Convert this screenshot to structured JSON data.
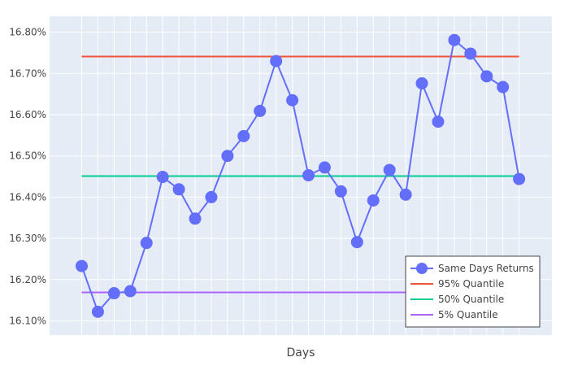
{
  "chart_data": {
    "type": "line",
    "xlabel": "Days",
    "ylabel": "",
    "ylim": [
      0.16065,
      0.16835
    ],
    "yticks": [
      "16.10%",
      "16.20%",
      "16.30%",
      "16.40%",
      "16.50%",
      "16.60%",
      "16.70%",
      "16.80%"
    ],
    "x": [
      1,
      2,
      3,
      4,
      5,
      6,
      7,
      8,
      9,
      10,
      11,
      12,
      13,
      14,
      15,
      16,
      17,
      18,
      19,
      20,
      21,
      22,
      23,
      24,
      25,
      26,
      27,
      28
    ],
    "series": [
      {
        "name": "Same Days Returns",
        "type": "line+markers",
        "color": "#636efa",
        "values": [
          0.16233,
          0.16122,
          0.16167,
          0.16172,
          0.16289,
          0.16449,
          0.16419,
          0.16348,
          0.164,
          0.165,
          0.16548,
          0.16609,
          0.1673,
          0.16635,
          0.16453,
          0.16472,
          0.16414,
          0.16291,
          0.16392,
          0.16466,
          0.16406,
          0.16676,
          0.16583,
          0.16781,
          0.16748,
          0.16693,
          0.16667,
          0.16444
        ]
      },
      {
        "name": "95% Quantile",
        "type": "line",
        "color": "#ef553b",
        "value": 0.16741
      },
      {
        "name": "50% Quantile",
        "type": "line",
        "color": "#00cc96",
        "value": 0.16451
      },
      {
        "name": "5% Quantile",
        "type": "line",
        "color": "#ab63fa",
        "value": 0.16169
      }
    ],
    "grid": true,
    "legend_placement": "bottom-right",
    "plot_background": "#e5ecf6"
  }
}
